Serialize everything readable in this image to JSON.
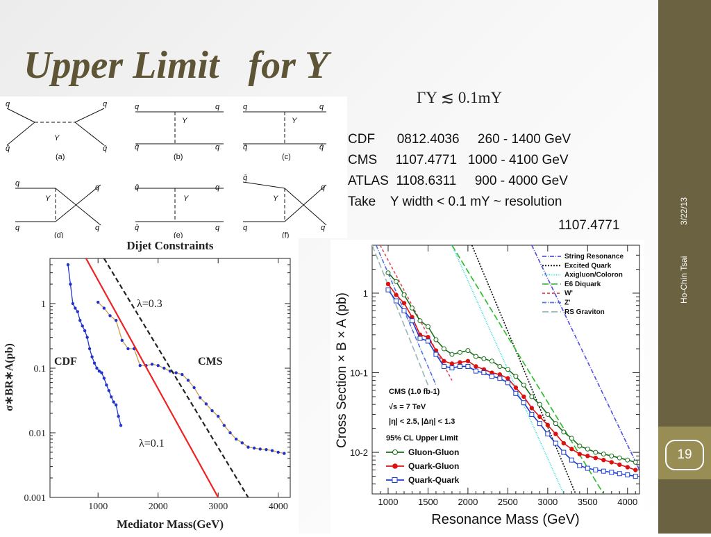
{
  "slide": {
    "title": "Upper Limit   for Y",
    "formula": "ΓY ≲ 0.1mY",
    "info_rows": [
      "CDF      0812.4036     260 - 1400 GeV",
      "CMS     1107.4771   1000 - 4100 GeV",
      "ATLAS  1108.6311     900 - 4000 GeV",
      "Take    Y width < 0.1 mY ~ resolution"
    ],
    "info_ref": "1107.4771",
    "date": "3/22/13",
    "author": "Ho-Chin Tsai",
    "page_number": "19",
    "colors": {
      "title": "#5e5537",
      "sidebar": "#6b6242",
      "sidebar_band": "#988d55"
    }
  },
  "feynman": {
    "labels": {
      "q": "q",
      "qbar": "q̄",
      "Y": "Y"
    },
    "panels": [
      "(a)",
      "(b)",
      "(c)",
      "(d)",
      "(e)",
      "(f)"
    ]
  },
  "chart_data": [
    {
      "type": "line",
      "title": "Dijet Constraints",
      "xlabel": "Mediator Mass(GeV)",
      "ylabel": "σ∗BR∗A(pb)",
      "xlim": [
        200,
        4200
      ],
      "ylim": [
        0.001,
        5
      ],
      "y_log": true,
      "xticks": [
        1000,
        2000,
        3000,
        4000
      ],
      "yticks": [
        {
          "v": 1,
          "label": "1"
        },
        {
          "v": 0.1,
          "label": "0.1"
        },
        {
          "v": 0.01,
          "label": "0.01"
        },
        {
          "v": 0.001,
          "label": "0.001"
        }
      ],
      "series": [
        {
          "name": "CDF",
          "color": "#2233cc",
          "markers": true,
          "x": [
            500,
            540,
            580,
            620,
            660,
            700,
            740,
            780,
            820,
            860,
            900,
            940,
            980,
            1020,
            1060,
            1100,
            1140,
            1180,
            1220,
            1260,
            1300,
            1340,
            1380
          ],
          "y": [
            4.0,
            2.0,
            1.0,
            0.85,
            0.75,
            0.55,
            0.45,
            0.38,
            0.3,
            0.2,
            0.15,
            0.12,
            0.1,
            0.09,
            0.085,
            0.07,
            0.055,
            0.045,
            0.036,
            0.03,
            0.027,
            0.018,
            0.013
          ]
        },
        {
          "name": "CMS",
          "color": "#c99a4a",
          "marker_color": "#2233cc",
          "markers": true,
          "x": [
            1000,
            1100,
            1200,
            1300,
            1400,
            1500,
            1600,
            1700,
            1800,
            1900,
            2000,
            2100,
            2200,
            2300,
            2400,
            2500,
            2600,
            2700,
            2800,
            2900,
            3000,
            3100,
            3200,
            3300,
            3400,
            3500,
            3600,
            3700,
            3800,
            3900,
            4000,
            4100
          ],
          "y": [
            1.05,
            0.85,
            0.65,
            0.55,
            0.27,
            0.2,
            0.2,
            0.11,
            0.11,
            0.115,
            0.11,
            0.1,
            0.09,
            0.085,
            0.08,
            0.065,
            0.05,
            0.035,
            0.028,
            0.022,
            0.018,
            0.013,
            0.01,
            0.008,
            0.007,
            0.006,
            0.0058,
            0.0056,
            0.0055,
            0.0053,
            0.005,
            0.0048
          ]
        },
        {
          "name": "λ=0.1",
          "color": "#ee2222",
          "markers": false,
          "x": [
            800,
            3000
          ],
          "y": [
            5,
            0.001
          ]
        },
        {
          "name": "λ=0.3",
          "color": "#222222",
          "dashed": true,
          "markers": false,
          "x": [
            1100,
            3500
          ],
          "y": [
            5,
            0.001
          ]
        }
      ],
      "annotations": [
        "CDF",
        "CMS",
        "λ=0.3",
        "λ=0.1"
      ]
    },
    {
      "type": "line",
      "xlabel": "Resonance Mass (GeV)",
      "ylabel": "Cross Section × B × A (pb)",
      "xlim": [
        800,
        4150
      ],
      "ylim": [
        0.003,
        4
      ],
      "y_log": true,
      "xticks": [
        1000,
        1500,
        2000,
        2500,
        3000,
        3500,
        4000
      ],
      "yticks": [
        {
          "v": 1,
          "label": "1"
        },
        {
          "v": 0.1,
          "label": "10-1"
        },
        {
          "v": 0.01,
          "label": "10-2"
        }
      ],
      "legend_title": "95% CL Upper Limit",
      "info_text": [
        "CMS (1.0 fb-1)",
        "√s = 7 TeV",
        "|η| < 2.5, |Δη| < 1.3"
      ],
      "series": [
        {
          "name": "String Resonance",
          "color": "#5555dd",
          "dash": "6,2,1,2",
          "x": [
            2800,
            4150
          ],
          "y": [
            4,
            0.006
          ]
        },
        {
          "name": "Excited Quark",
          "color": "#111111",
          "dash": "2,2",
          "x": [
            2050,
            3350
          ],
          "y": [
            4,
            0.003
          ]
        },
        {
          "name": "Axigluon/Coloron",
          "color": "#33dddd",
          "dash": "1,1.5",
          "x": [
            1800,
            3200
          ],
          "y": [
            4,
            0.003
          ]
        },
        {
          "name": "E6 Diquark",
          "color": "#33bb33",
          "dash": "9,4",
          "x": [
            1800,
            3700
          ],
          "y": [
            4,
            0.003
          ]
        },
        {
          "name": "W'",
          "color": "#dd5566",
          "dash": "4,3",
          "x": [
            900,
            1800
          ],
          "y": [
            4,
            0.08
          ]
        },
        {
          "name": "Z'",
          "color": "#5577dd",
          "dash": "6,2,1,2",
          "x": [
            850,
            1600
          ],
          "y": [
            4,
            0.07
          ]
        },
        {
          "name": "RS Graviton",
          "color": "#99bbbb",
          "dash": "9,4",
          "x": [
            800,
            1500
          ],
          "y": [
            4,
            0.07
          ]
        },
        {
          "name": "Gluon-Gluon",
          "color": "#1a6e1a",
          "marker": "open-circle",
          "x": [
            1000,
            1100,
            1200,
            1300,
            1400,
            1500,
            1600,
            1700,
            1800,
            1900,
            2000,
            2100,
            2200,
            2300,
            2400,
            2500,
            2600,
            2700,
            2800,
            2900,
            3000,
            3100,
            3200,
            3300,
            3400,
            3500,
            3600,
            3700,
            3800,
            3900,
            4000,
            4100
          ],
          "y": [
            1.8,
            1.4,
            0.95,
            0.65,
            0.45,
            0.38,
            0.26,
            0.2,
            0.17,
            0.18,
            0.19,
            0.16,
            0.15,
            0.14,
            0.12,
            0.11,
            0.09,
            0.07,
            0.05,
            0.04,
            0.03,
            0.023,
            0.018,
            0.015,
            0.012,
            0.011,
            0.01,
            0.0095,
            0.009,
            0.0085,
            0.008,
            0.0075
          ]
        },
        {
          "name": "Quark-Gluon",
          "color": "#dd1111",
          "marker": "filled-circle",
          "x": [
            1000,
            1100,
            1200,
            1300,
            1400,
            1500,
            1600,
            1700,
            1800,
            1900,
            2000,
            2100,
            2200,
            2300,
            2400,
            2500,
            2600,
            2700,
            2800,
            2900,
            3000,
            3100,
            3200,
            3300,
            3400,
            3500,
            3600,
            3700,
            3800,
            3900,
            4000,
            4100
          ],
          "y": [
            1.3,
            0.95,
            0.75,
            0.5,
            0.3,
            0.28,
            0.19,
            0.14,
            0.13,
            0.135,
            0.14,
            0.12,
            0.11,
            0.1,
            0.095,
            0.085,
            0.065,
            0.05,
            0.036,
            0.028,
            0.022,
            0.017,
            0.013,
            0.011,
            0.0095,
            0.009,
            0.0085,
            0.008,
            0.0075,
            0.007,
            0.0065,
            0.006
          ]
        },
        {
          "name": "Quark-Quark",
          "color": "#1a3fcc",
          "marker": "open-square",
          "x": [
            1000,
            1100,
            1200,
            1300,
            1400,
            1500,
            1600,
            1700,
            1800,
            1900,
            2000,
            2100,
            2200,
            2300,
            2400,
            2500,
            2600,
            2700,
            2800,
            2900,
            3000,
            3100,
            3200,
            3300,
            3400,
            3500,
            3600,
            3700,
            3800,
            3900,
            4000,
            4100
          ],
          "y": [
            1.1,
            0.8,
            0.6,
            0.45,
            0.27,
            0.25,
            0.17,
            0.12,
            0.115,
            0.12,
            0.12,
            0.105,
            0.1,
            0.09,
            0.085,
            0.075,
            0.055,
            0.042,
            0.03,
            0.023,
            0.017,
            0.013,
            0.01,
            0.008,
            0.0068,
            0.0063,
            0.006,
            0.0058,
            0.0056,
            0.0054,
            0.0052,
            0.005
          ]
        }
      ]
    }
  ]
}
